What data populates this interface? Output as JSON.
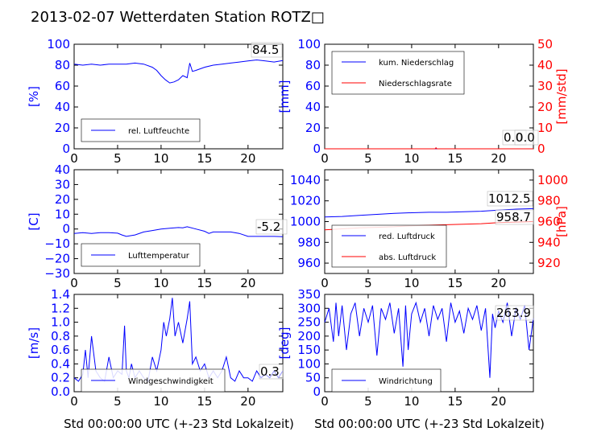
{
  "figure_title": "2013-02-07 Wetterdaten Station ROTZ□",
  "colors": {
    "primary": "#0000ff",
    "secondary": "#ff0000",
    "text": "#000000"
  },
  "x_axis_label": "Std 00:00:00 UTC (+-23 Std Lokalzeit)",
  "chart_data": [
    {
      "id": "humidity",
      "type": "line",
      "ylabel": "[%]",
      "ylim": [
        0,
        100
      ],
      "yticks": [
        "0",
        "20",
        "40",
        "60",
        "80",
        "100"
      ],
      "xlim": [
        0,
        24
      ],
      "xticks": [
        "0",
        "5",
        "10",
        "15",
        "20"
      ],
      "legend": "lower-left",
      "series": [
        {
          "name": "rel. Luftfeuchte",
          "color": "#0000ff",
          "x": [
            0,
            1,
            2,
            3,
            4,
            5,
            6,
            7,
            8,
            9,
            9.5,
            10,
            10.5,
            11,
            11.5,
            12,
            12.5,
            13,
            13.3,
            13.6,
            14,
            15,
            16,
            17,
            18,
            19,
            20,
            21,
            22,
            23,
            24
          ],
          "y": [
            81,
            80,
            81,
            80,
            81,
            81,
            81,
            82,
            81,
            78,
            75,
            70,
            66,
            63,
            64,
            66,
            70,
            68,
            82,
            74,
            75,
            78,
            80,
            81,
            82,
            83,
            84,
            85,
            84,
            83,
            84.5
          ]
        }
      ],
      "annotation": "84.5"
    },
    {
      "id": "precip",
      "type": "line",
      "ylabel": "[mm]",
      "ylim": [
        0,
        100
      ],
      "yticks": [
        "0",
        "20",
        "40",
        "60",
        "80",
        "100"
      ],
      "y2label": "[mm/std]",
      "y2lim": [
        0,
        50
      ],
      "y2ticks": [
        "0",
        "10",
        "20",
        "30",
        "40",
        "50"
      ],
      "xlim": [
        0,
        24
      ],
      "xticks": [
        "0",
        "5",
        "10",
        "15",
        "20"
      ],
      "legend": "upper-left",
      "series": [
        {
          "name": "kum. Niederschlag",
          "color": "#0000ff",
          "axis": "left",
          "x": [
            0,
            24
          ],
          "y": [
            0,
            0
          ]
        },
        {
          "name": "Niederschlagsrate",
          "color": "#ff0000",
          "axis": "right",
          "x": [
            0,
            12.7,
            12.8,
            12.9,
            24
          ],
          "y": [
            0,
            0,
            0.5,
            0,
            0
          ]
        }
      ],
      "annotations": [
        "0.0",
        "0.0"
      ]
    },
    {
      "id": "temperature",
      "type": "line",
      "ylabel": "[C]",
      "ylim": [
        -30,
        40
      ],
      "yticks": [
        "−30",
        "−20",
        "−10",
        "0",
        "10",
        "20",
        "30",
        "40"
      ],
      "xlim": [
        0,
        24
      ],
      "xticks": [
        "0",
        "5",
        "10",
        "15",
        "20"
      ],
      "legend": "lower-left",
      "series": [
        {
          "name": "Lufttemperatur",
          "color": "#0000ff",
          "x": [
            0,
            1,
            2,
            3,
            4,
            5,
            5.5,
            6,
            6.5,
            7,
            8,
            9,
            10,
            11,
            12,
            12.5,
            13,
            14,
            15,
            15.5,
            16,
            17,
            18,
            19,
            20,
            21,
            22,
            23,
            24
          ],
          "y": [
            -3,
            -2.5,
            -3,
            -2.5,
            -2.5,
            -2.8,
            -4,
            -5,
            -4.5,
            -4,
            -2,
            -1,
            0,
            0.5,
            1,
            0.8,
            1.5,
            0,
            -1.5,
            -3,
            -2,
            -2,
            -2,
            -3,
            -5,
            -5,
            -5,
            -5,
            -5.2
          ]
        }
      ],
      "annotation": "-5.2"
    },
    {
      "id": "pressure",
      "type": "line",
      "ylabel": "",
      "ylim": [
        950,
        1050
      ],
      "yticks": [
        "960",
        "980",
        "1000",
        "1020",
        "1040"
      ],
      "y2label": "[hPa]",
      "y2lim": [
        910,
        1010
      ],
      "y2ticks": [
        "920",
        "940",
        "960",
        "980",
        "1000"
      ],
      "xlim": [
        0,
        24
      ],
      "xticks": [
        "0",
        "5",
        "10",
        "15",
        "20"
      ],
      "legend": "lower-left",
      "series": [
        {
          "name": "red. Luftdruck",
          "color": "#0000ff",
          "axis": "left",
          "x": [
            0,
            2,
            4,
            6,
            8,
            10,
            12,
            14,
            16,
            18,
            20,
            22,
            24
          ],
          "y": [
            1004.5,
            1005,
            1006,
            1007,
            1008,
            1008.5,
            1009,
            1009,
            1009.5,
            1010,
            1011,
            1012,
            1012.5
          ]
        },
        {
          "name": "abs. Luftdruck",
          "color": "#ff0000",
          "axis": "left",
          "x": [
            0,
            2,
            4,
            6,
            8,
            10,
            12,
            14,
            16,
            18,
            20,
            22,
            24
          ],
          "y": [
            992,
            993,
            994,
            994.5,
            995,
            996,
            996.5,
            997,
            997.5,
            998,
            999,
            999.5,
            1000
          ]
        }
      ],
      "annotations": [
        "1012.5",
        "958.7"
      ]
    },
    {
      "id": "windspeed",
      "type": "line",
      "ylabel": "[m/s]",
      "ylim": [
        0,
        1.4
      ],
      "yticks": [
        "0.0",
        "0.2",
        "0.4",
        "0.6",
        "0.8",
        "1.0",
        "1.2",
        "1.4"
      ],
      "xlim": [
        0,
        24
      ],
      "xticks": [
        "0",
        "5",
        "10",
        "15",
        "20"
      ],
      "legend": "lower-left",
      "series": [
        {
          "name": "Windgeschwindigkeit",
          "color": "#0000ff",
          "x": [
            0,
            0.5,
            1,
            1.3,
            1.6,
            2,
            2.5,
            3,
            3.5,
            4,
            4.5,
            5,
            5.5,
            5.8,
            6,
            6.3,
            6.6,
            7,
            7.5,
            8,
            8.5,
            9,
            9.5,
            10,
            10.3,
            10.6,
            11,
            11.3,
            11.6,
            12,
            12.5,
            13,
            13.3,
            13.6,
            14,
            14.5,
            15,
            15.5,
            16,
            16.5,
            17,
            17.5,
            18,
            18.5,
            19,
            19.5,
            20,
            20.5,
            21,
            21.5,
            22,
            22.5,
            23,
            23.5,
            24
          ],
          "y": [
            0.2,
            0.15,
            0.25,
            0.6,
            0.2,
            0.8,
            0.3,
            0.2,
            0.15,
            0.5,
            0.2,
            0.3,
            0.25,
            0.95,
            0.3,
            0.2,
            0.4,
            0.2,
            0.3,
            0.2,
            0.15,
            0.5,
            0.3,
            0.6,
            1.0,
            0.8,
            1.05,
            1.35,
            0.8,
            1.0,
            0.7,
            1.05,
            1.3,
            0.4,
            0.5,
            0.3,
            0.4,
            0.2,
            0.3,
            0.2,
            0.3,
            0.5,
            0.2,
            0.15,
            0.3,
            0.2,
            0.2,
            0.15,
            0.3,
            0.2,
            0.25,
            0.2,
            0.3,
            0.2,
            0.3
          ]
        }
      ],
      "annotation": "0.3"
    },
    {
      "id": "winddir",
      "type": "line",
      "ylabel": "[deg]",
      "ylim": [
        0,
        350
      ],
      "yticks": [
        "0",
        "50",
        "100",
        "150",
        "200",
        "250",
        "300",
        "350"
      ],
      "xlim": [
        0,
        24
      ],
      "xticks": [
        "0",
        "5",
        "10",
        "15",
        "20"
      ],
      "legend": "lower-left",
      "series": [
        {
          "name": "Windrichtung",
          "color": "#0000ff",
          "x": [
            0,
            0.5,
            1,
            1.3,
            1.6,
            2,
            2.5,
            3,
            3.5,
            4,
            4.5,
            5,
            5.5,
            6,
            6.5,
            7,
            7.5,
            8,
            8.5,
            9,
            9.3,
            9.6,
            10,
            10.5,
            11,
            11.5,
            12,
            12.5,
            13,
            13.5,
            14,
            14.5,
            15,
            15.5,
            16,
            16.5,
            17,
            17.5,
            18,
            18.5,
            19,
            19.3,
            19.6,
            20,
            20.5,
            21,
            21.5,
            22,
            22.5,
            23,
            23.5,
            24
          ],
          "y": [
            250,
            300,
            180,
            320,
            200,
            310,
            150,
            280,
            320,
            200,
            300,
            250,
            310,
            130,
            300,
            260,
            320,
            210,
            300,
            90,
            310,
            150,
            280,
            320,
            250,
            300,
            200,
            310,
            260,
            300,
            180,
            320,
            250,
            290,
            210,
            300,
            260,
            310,
            220,
            300,
            50,
            280,
            230,
            290,
            250,
            320,
            200,
            300,
            260,
            310,
            150,
            263.9
          ]
        }
      ],
      "annotation": "263.9"
    }
  ]
}
